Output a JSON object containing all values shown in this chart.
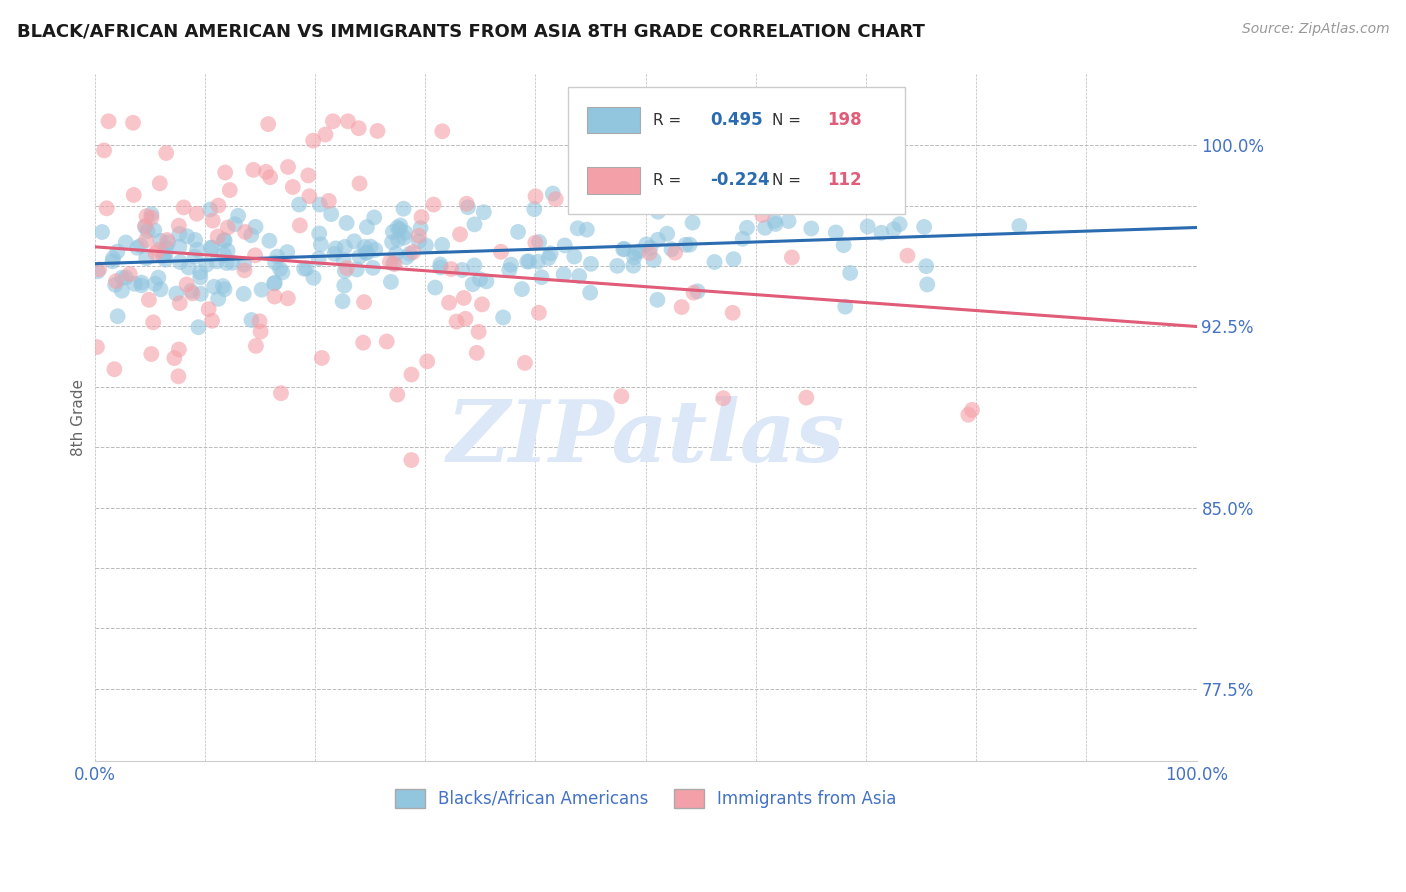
{
  "title": "BLACK/AFRICAN AMERICAN VS IMMIGRANTS FROM ASIA 8TH GRADE CORRELATION CHART",
  "source_text": "Source: ZipAtlas.com",
  "ylabel": "8th Grade",
  "xlim": [
    0.0,
    1.0
  ],
  "ylim": [
    0.745,
    1.03
  ],
  "ytick_vals": [
    0.775,
    0.8,
    0.825,
    0.85,
    0.875,
    0.9,
    0.925,
    0.95,
    0.975,
    1.0
  ],
  "ytick_labels_right": [
    "77.5%",
    "",
    "",
    "85.0%",
    "",
    "",
    "92.5%",
    "",
    "",
    "100.0%"
  ],
  "blue_R": 0.495,
  "blue_N": 198,
  "pink_R": -0.224,
  "pink_N": 112,
  "blue_color": "#92c5de",
  "pink_color": "#f4a0a8",
  "blue_line_color": "#2b6cb0",
  "pink_line_color": "#e05c78",
  "axis_label_color": "#4472c4",
  "watermark_text": "ZIPatlas",
  "watermark_color": "#dce8f8",
  "legend_label_blue": "Blacks/African Americans",
  "legend_label_pink": "Immigrants from Asia",
  "background_color": "#ffffff",
  "grid_color": "#bbbbbb",
  "blue_trend_x0": 0.0,
  "blue_trend_y0": 0.951,
  "blue_trend_x1": 1.0,
  "blue_trend_y1": 0.966,
  "pink_trend_x0": 0.0,
  "pink_trend_y0": 0.958,
  "pink_trend_x1": 1.0,
  "pink_trend_y1": 0.925
}
